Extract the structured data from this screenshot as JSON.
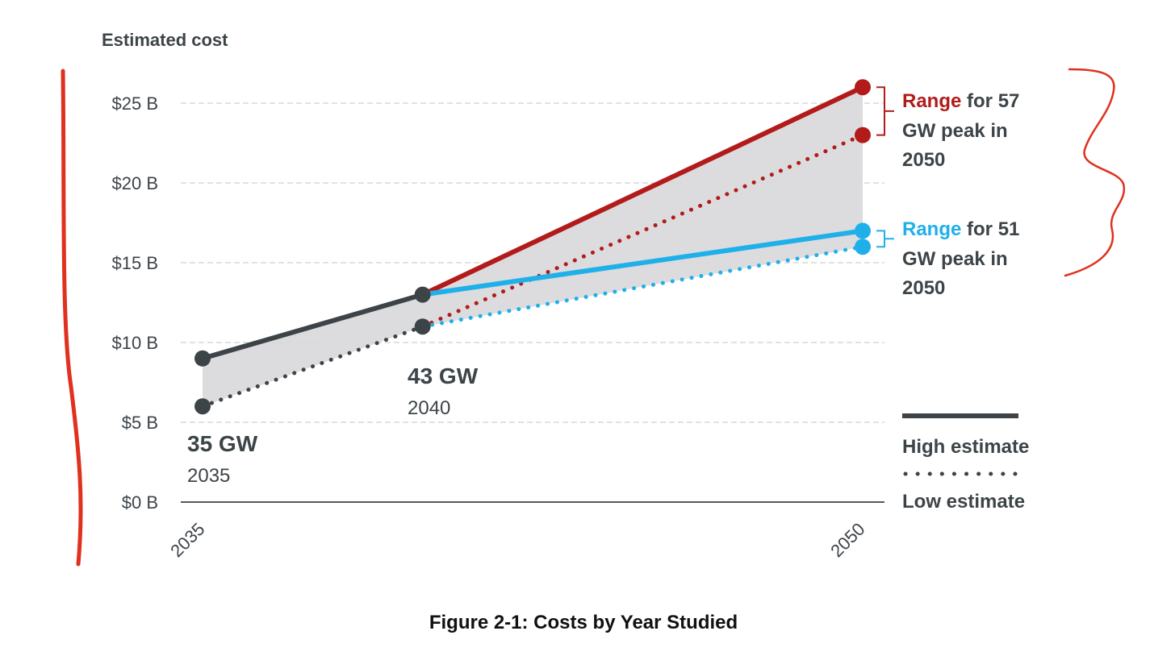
{
  "chart_data": {
    "type": "line",
    "ylabel": "Estimated cost",
    "ylim": [
      0,
      25
    ],
    "y_ticks": [
      {
        "value": 0,
        "label": "$0 B"
      },
      {
        "value": 5,
        "label": "$5 B"
      },
      {
        "value": 10,
        "label": "$10 B"
      },
      {
        "value": 15,
        "label": "$15 B"
      },
      {
        "value": 20,
        "label": "$20 B"
      },
      {
        "value": 25,
        "label": "$25 B"
      }
    ],
    "x_ticks": [
      "2035",
      "2050"
    ],
    "grid": true,
    "series": [
      {
        "key": "gray_high",
        "x": [
          2035,
          2040
        ],
        "values": [
          9,
          13
        ],
        "color": "#3d4448",
        "style": "solid"
      },
      {
        "key": "gray_low",
        "x": [
          2035,
          2040
        ],
        "values": [
          6,
          11
        ],
        "color": "#3d4448",
        "style": "dotted"
      },
      {
        "key": "red_high",
        "x": [
          2040,
          2050
        ],
        "values": [
          13,
          26
        ],
        "color": "#b31b1b",
        "style": "solid"
      },
      {
        "key": "red_low",
        "x": [
          2040,
          2050
        ],
        "values": [
          11,
          23
        ],
        "color": "#b31b1b",
        "style": "dotted"
      },
      {
        "key": "blue_high",
        "x": [
          2040,
          2050
        ],
        "values": [
          13,
          17
        ],
        "color": "#1fb0ea",
        "style": "solid"
      },
      {
        "key": "blue_low",
        "x": [
          2040,
          2050
        ],
        "values": [
          11,
          16
        ],
        "color": "#1fb0ea",
        "style": "dotted"
      }
    ],
    "annotations": [
      {
        "key": "a2035",
        "title": "35 GW",
        "sub": "2035"
      },
      {
        "key": "a2040",
        "title": "43 GW",
        "sub": "2040"
      }
    ],
    "ranges": [
      {
        "key": "red",
        "highlight": "Range",
        "lines": [
          " for 57",
          "GW peak in",
          "2050"
        ],
        "color": "#b31b1b"
      },
      {
        "key": "blue",
        "highlight": "Range",
        "lines": [
          " for 51",
          "GW peak in",
          "2050"
        ],
        "color": "#1fb0ea"
      }
    ],
    "legend": {
      "high_label": "High estimate",
      "low_label": "Low estimate",
      "placement": "right"
    },
    "caption": "Figure 2-1: Costs by Year Studied",
    "colors": {
      "axis": "#3d4448",
      "grid": "#d9d9d9",
      "band": "#dcdcde",
      "markup": "#e0301e"
    }
  }
}
